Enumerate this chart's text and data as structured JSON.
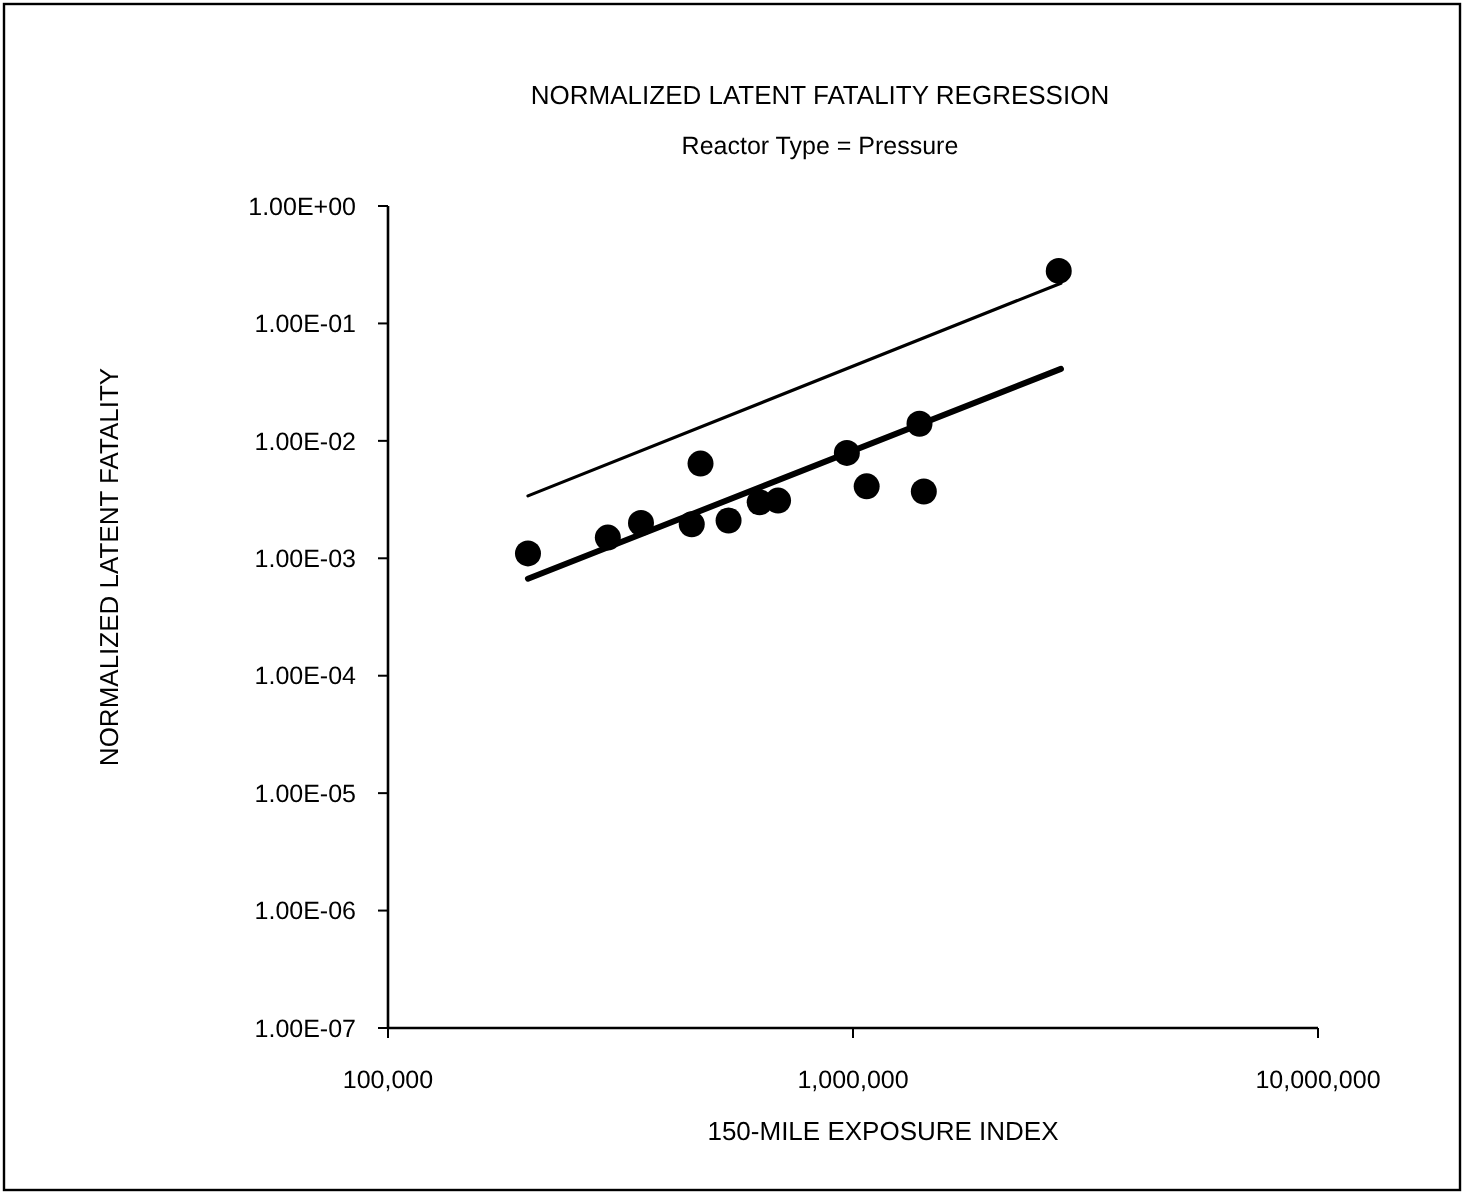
{
  "chart_data": {
    "type": "scatter",
    "title": "NORMALIZED LATENT FATALITY REGRESSION",
    "subtitle": "Reactor Type = Pressure",
    "xlabel": "150-MILE EXPOSURE INDEX",
    "ylabel": "NORMALIZED LATENT FATALITY",
    "log": "xy",
    "grid": false,
    "xlim": [
      100000,
      10000000
    ],
    "xticks": [
      {
        "value": 100000,
        "label": "100,000"
      },
      {
        "value": 1000000,
        "label": "1,000,000"
      },
      {
        "value": 10000000,
        "label": "10,000,000"
      }
    ],
    "ylim": [
      1e-07,
      1
    ],
    "yticks": [
      {
        "value": 1,
        "label": "1.00E+00"
      },
      {
        "value": 0.1,
        "label": "1.00E-01"
      },
      {
        "value": 0.01,
        "label": "1.00E-02"
      },
      {
        "value": 0.001,
        "label": "1.00E-03"
      },
      {
        "value": 0.0001,
        "label": "1.00E-04"
      },
      {
        "value": 1e-05,
        "label": "1.00E-05"
      },
      {
        "value": 1e-06,
        "label": "1.00E-06"
      },
      {
        "value": 1e-07,
        "label": "1.00E-07"
      }
    ],
    "series": [
      {
        "marker": "circle",
        "color": "#000000",
        "x": [
          200000,
          297000,
          350000,
          450000,
          470000,
          540000,
          630000,
          690000,
          970000,
          1070000,
          1390000,
          1420000,
          2770000
        ],
        "values": [
          0.0011,
          0.0015,
          0.002,
          0.00195,
          0.0064,
          0.0021,
          0.003,
          0.0031,
          0.0079,
          0.0041,
          0.014,
          0.0037,
          0.28
        ]
      },
      {
        "type": "line",
        "marker": "none",
        "line_style": "solid",
        "color": "#000000",
        "x": [
          200000,
          2800000
        ],
        "values": [
          0.0034,
          0.22
        ]
      },
      {
        "type": "line",
        "marker": "none",
        "line_style": "solid",
        "color": "#000000",
        "x": [
          200000,
          2800000
        ],
        "values": [
          0.00067,
          0.041
        ]
      }
    ]
  }
}
